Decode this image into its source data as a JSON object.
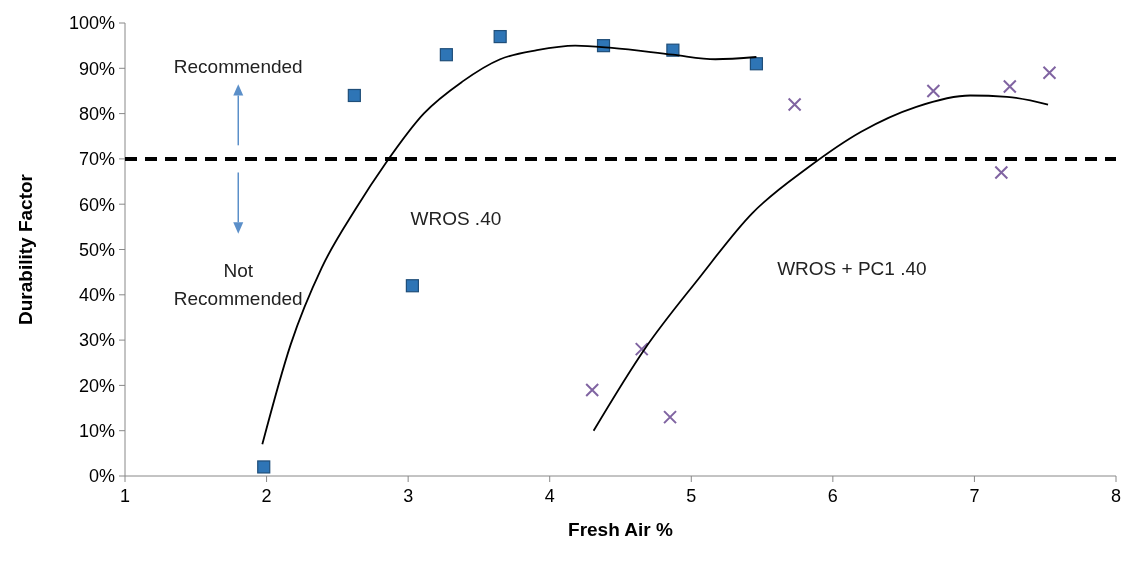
{
  "chart_data": {
    "type": "scatter",
    "xlabel": "Fresh Air %",
    "ylabel": "Durability Factor",
    "xlim": [
      1,
      8
    ],
    "xticks": [
      1,
      2,
      3,
      4,
      5,
      6,
      7,
      8
    ],
    "ylim": [
      0,
      100
    ],
    "yticks": [
      {
        "value": 0,
        "label": "0%"
      },
      {
        "value": 10,
        "label": "10%"
      },
      {
        "value": 20,
        "label": "20%"
      },
      {
        "value": 30,
        "label": "30%"
      },
      {
        "value": 40,
        "label": "40%"
      },
      {
        "value": 50,
        "label": "50%"
      },
      {
        "value": 60,
        "label": "60%"
      },
      {
        "value": 70,
        "label": "70%"
      },
      {
        "value": 80,
        "label": "80%"
      },
      {
        "value": 90,
        "label": "90%"
      },
      {
        "value": 100,
        "label": "100%"
      }
    ],
    "grid": false,
    "series": [
      {
        "color": "#2e75b6",
        "marker": "square",
        "x": [
          1.98,
          2.62,
          3.03,
          3.27,
          3.65,
          4.38,
          4.87,
          5.46
        ],
        "values": [
          2,
          84,
          42,
          93,
          97,
          95,
          94,
          91
        ]
      },
      {
        "color": "#8064a2",
        "marker": "cross",
        "x": [
          4.3,
          4.65,
          4.85,
          5.73,
          6.71,
          7.19,
          7.25,
          7.53
        ],
        "values": [
          19,
          28,
          13,
          82,
          85,
          67,
          86,
          89
        ]
      },
      {
        "type": "line",
        "name": "WROS .40",
        "color": "#000000",
        "marker": "none",
        "x": [
          1.97,
          2.17,
          2.39,
          2.63,
          2.84,
          3.11,
          3.38,
          3.65,
          3.91,
          4.18,
          4.44,
          4.87,
          5.17,
          5.46
        ],
        "values": [
          7,
          29,
          46,
          59,
          69,
          80,
          87,
          92,
          94,
          95,
          94.5,
          93,
          92,
          92.5
        ]
      },
      {
        "type": "line",
        "name": "WROS + PC1 .40",
        "color": "#000000",
        "marker": "none",
        "x": [
          4.31,
          4.67,
          5.05,
          5.43,
          5.82,
          6.2,
          6.59,
          6.97,
          7.23,
          7.52
        ],
        "values": [
          10,
          28,
          43.5,
          58,
          68,
          76,
          81.5,
          84,
          83.7,
          82
        ]
      }
    ],
    "ref_lines": [
      {
        "axis": "y",
        "value": 70,
        "color": "#000000",
        "line_style": "dashed"
      }
    ],
    "annotations": [
      "Recommended",
      "Not Recommended"
    ]
  }
}
